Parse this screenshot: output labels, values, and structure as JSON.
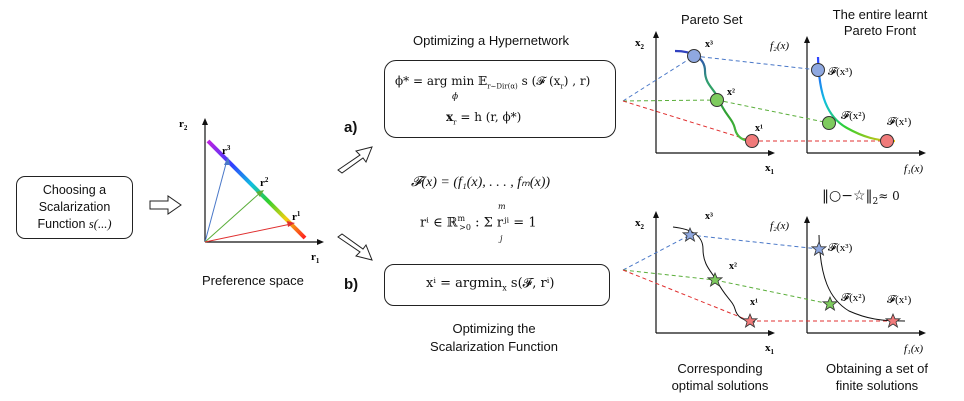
{
  "scalarization_box": {
    "line1": "Choosing a",
    "line2": "Scalarization",
    "line3": "Function ",
    "fn": "s(...)"
  },
  "preference_space": {
    "caption": "Preference space",
    "axis_y": "r",
    "axis_y_sub": "2",
    "axis_x": "r",
    "axis_x_sub": "1",
    "ray1": "r",
    "ray1_sup": "1",
    "ray2": "r",
    "ray2_sup": "2",
    "ray3": "r",
    "ray3_sup": "3"
  },
  "branch_a": {
    "label": "a)",
    "title": "Optimizing a Hypernetwork",
    "eq1_lhs": "ϕ* = arg min",
    "eq1_sub": "ϕ",
    "eq1_exp": "𝔼",
    "eq1_exp_sub": "r∼Dir(α)",
    "eq1_rhs": "s (𝓕 (x",
    "eq1_rhs_sub": "r",
    "eq1_rhs_end": ") , r)",
    "eq2": "x",
    "eq2_sub": "r",
    "eq2_rhs": " = h (r, ϕ*)"
  },
  "middle": {
    "objective": "𝓕(x) = (f₁(x), . . . , fₘ(x))",
    "pref_def_lhs": "rⁱ ∈ ℝ",
    "pref_def_sup": "m",
    "pref_def_sub": ">0",
    "pref_def_sum_top": "m",
    "pref_def_sum_bot": "j",
    "pref_def_rhs": ": Σ rʲⁱ = 1"
  },
  "branch_b": {
    "label": "b)",
    "eq": "xⁱ = argmin",
    "eq_sub": "x",
    "eq_rhs": " s(𝓕, rⁱ)",
    "title_line1": "Optimizing the",
    "title_line2": "Scalarization Function"
  },
  "top_panels": {
    "set_title": "Pareto Set",
    "front_title_line1": "The entire learnt",
    "front_title_line2": "Pareto Front",
    "x2": "x",
    "x2_sub": "2",
    "x1": "x",
    "x1_sub": "1",
    "f2": "f₂(x)",
    "f1": "f₁(x)",
    "pt1": "x¹",
    "pt2": "x²",
    "pt3": "x³",
    "fpt1": "𝓕(x¹)",
    "fpt2": "𝓕(x²)",
    "fpt3": "𝓕(x³)"
  },
  "bottom_panels": {
    "norm": "‖○−☆‖",
    "norm_sub": "2",
    "norm_rhs": "≈ 0",
    "x2": "x",
    "x2_sub": "2",
    "x1": "x",
    "x1_sub": "1",
    "f2": "f₂(x)",
    "f1": "f₁(x)",
    "pt1": "x¹",
    "pt2": "x²",
    "pt3": "x³",
    "fpt1": "𝓕(x¹)",
    "fpt2": "𝓕(x²)",
    "fpt3": "𝓕(x³)",
    "caption_left_line1": "Corresponding",
    "caption_left_line2": "optimal solutions",
    "caption_right_line1": "Obtaining a set of",
    "caption_right_line2": "finite solutions"
  },
  "colors": {
    "blue_pt": "#8fa8e0",
    "green_pt": "#7ecb5e",
    "red_pt": "#f07a7a",
    "blue_line": "#4a78c8",
    "green_line": "#5aae3a",
    "red_line": "#e03030"
  }
}
